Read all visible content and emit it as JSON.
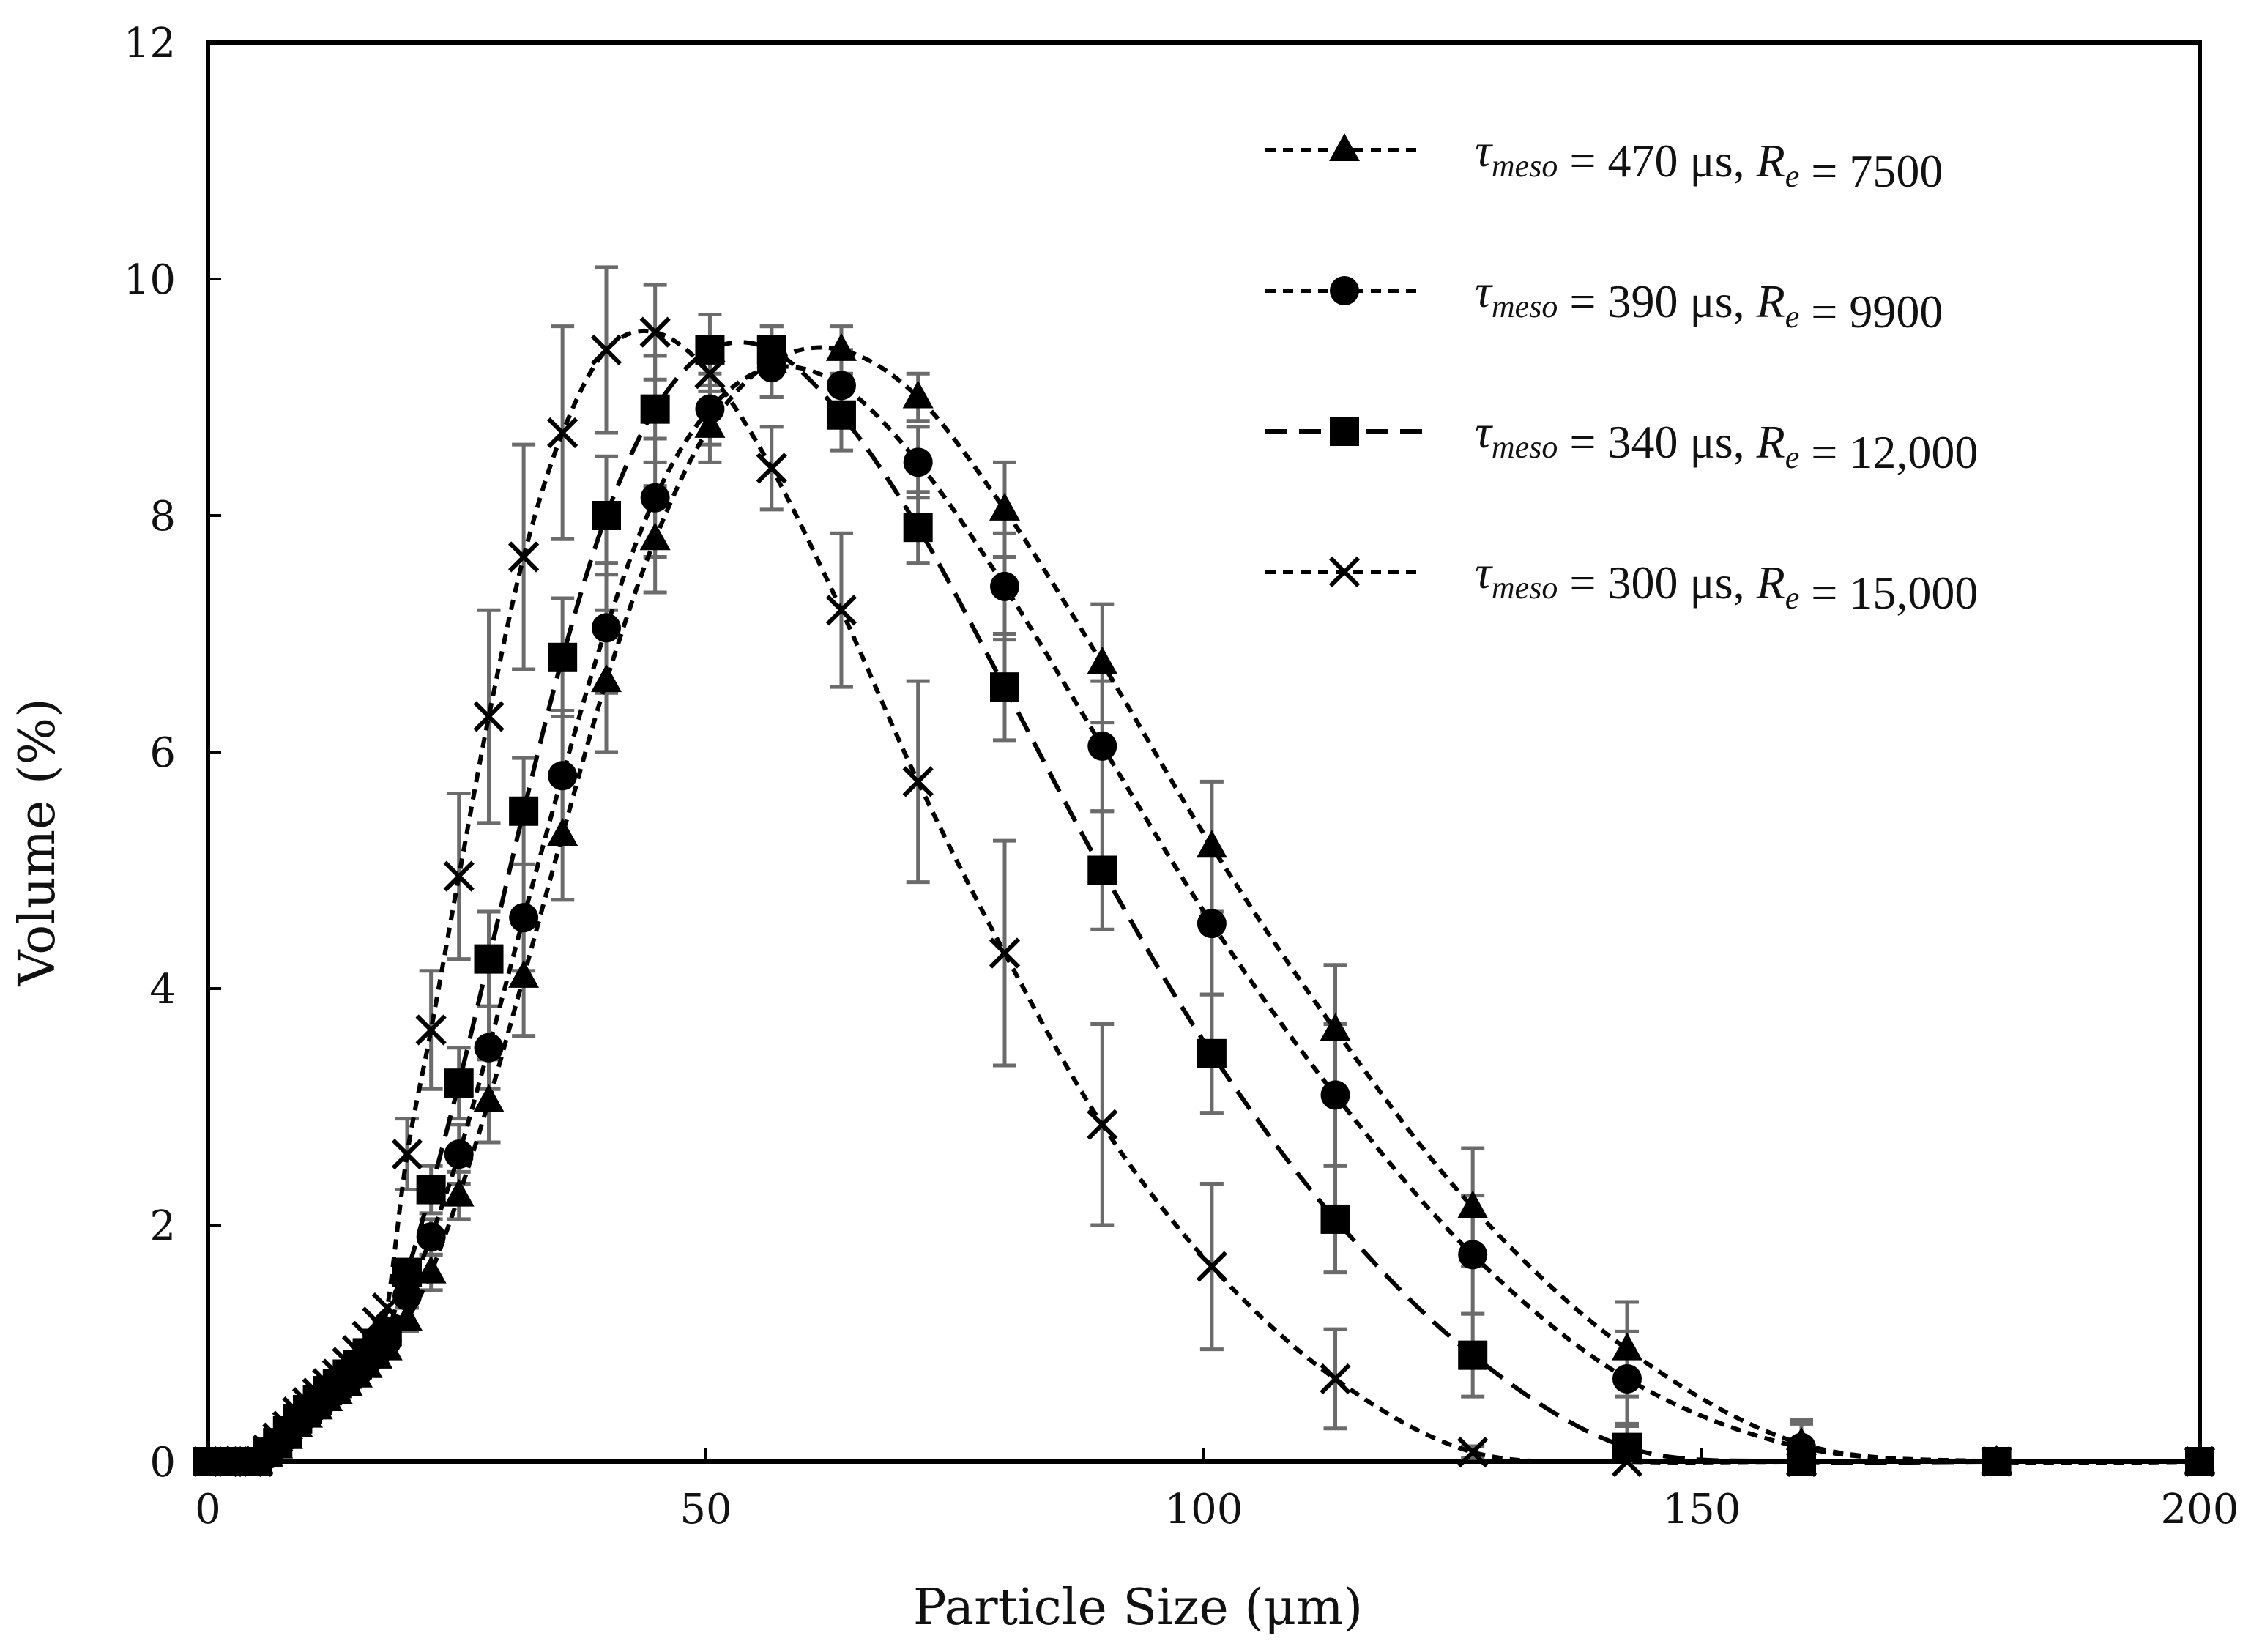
{
  "chart_data": {
    "type": "line",
    "xlabel": "Particle Size (μm)",
    "ylabel": "Volume (%)",
    "xlim": [
      0,
      200
    ],
    "ylim": [
      0,
      12
    ],
    "xticks": [
      0,
      50,
      100,
      150,
      200
    ],
    "yticks": [
      0,
      2,
      4,
      6,
      8,
      10,
      12
    ],
    "grid": false,
    "legend_position": "top-right",
    "series": [
      {
        "name": "τmeso = 470 μs, Re = 7500",
        "tau": "470",
        "re": "7500",
        "marker": "triangle",
        "dash": "short",
        "x": [
          0,
          2,
          4,
          5,
          6,
          7,
          8,
          9,
          10,
          11,
          12,
          13,
          14,
          15,
          16,
          17,
          18,
          20,
          22.4,
          25.2,
          28.2,
          31.7,
          35.6,
          40,
          44.9,
          50.4,
          56.6,
          63.6,
          71.3,
          80,
          89.8,
          100.8,
          113.2,
          127,
          142.5,
          160,
          179.6,
          200
        ],
        "y": [
          0,
          0,
          0,
          0,
          0.05,
          0.12,
          0.2,
          0.3,
          0.38,
          0.45,
          0.52,
          0.58,
          0.65,
          0.72,
          0.8,
          0.88,
          0.95,
          1.2,
          1.6,
          2.25,
          3.05,
          4.1,
          5.3,
          6.6,
          7.8,
          8.75,
          9.3,
          9.4,
          9,
          8.05,
          6.75,
          5.2,
          3.65,
          2.15,
          0.95,
          0.15,
          0,
          0
        ],
        "err": [
          0,
          0,
          0,
          0,
          0,
          0,
          0,
          0,
          0,
          0,
          0,
          0,
          0,
          0,
          0,
          0,
          0,
          0.1,
          0.15,
          0.2,
          0.35,
          0.5,
          0.55,
          0.6,
          0.45,
          0.3,
          0.3,
          0.2,
          0.2,
          0.4,
          0.5,
          0.55,
          0.55,
          0.5,
          0.4,
          0.2,
          0,
          0
        ]
      },
      {
        "name": "τmeso = 390 μs, Re = 9900",
        "tau": "390",
        "re": "9900",
        "marker": "circle",
        "dash": "short",
        "x": [
          0,
          2,
          4,
          5,
          6,
          7,
          8,
          9,
          10,
          11,
          12,
          13,
          14,
          15,
          16,
          17,
          18,
          20,
          22.4,
          25.2,
          28.2,
          31.7,
          35.6,
          40,
          44.9,
          50.4,
          56.6,
          63.6,
          71.3,
          80,
          89.8,
          100.8,
          113.2,
          127,
          142.5,
          160,
          179.6,
          200
        ],
        "y": [
          0,
          0,
          0,
          0,
          0.06,
          0.14,
          0.22,
          0.32,
          0.4,
          0.47,
          0.54,
          0.6,
          0.68,
          0.75,
          0.85,
          0.93,
          1.02,
          1.4,
          1.9,
          2.6,
          3.5,
          4.6,
          5.8,
          7.05,
          8.15,
          8.9,
          9.25,
          9.1,
          8.45,
          7.4,
          6.05,
          4.55,
          3.1,
          1.75,
          0.7,
          0.12,
          0,
          0
        ],
        "err": [
          0,
          0,
          0,
          0,
          0,
          0,
          0,
          0,
          0,
          0,
          0,
          0,
          0,
          0,
          0,
          0,
          0,
          0.1,
          0.15,
          0.25,
          0.35,
          0.45,
          0.55,
          0.55,
          0.5,
          0.3,
          0.25,
          0.3,
          0.3,
          0.45,
          0.55,
          0.6,
          0.6,
          0.5,
          0.4,
          0.2,
          0,
          0
        ]
      },
      {
        "name": "τmeso = 340 μs, Re = 12,000",
        "tau": "340",
        "re": "12,000",
        "marker": "square",
        "dash": "long",
        "x": [
          0,
          2,
          4,
          5,
          6,
          7,
          8,
          9,
          10,
          11,
          12,
          13,
          14,
          15,
          16,
          17,
          18,
          20,
          22.4,
          25.2,
          28.2,
          31.7,
          35.6,
          40,
          44.9,
          50.4,
          56.6,
          63.6,
          71.3,
          80,
          89.8,
          100.8,
          113.2,
          127,
          142.5,
          160,
          179.6,
          200
        ],
        "y": [
          0,
          0,
          0,
          0,
          0.08,
          0.16,
          0.26,
          0.36,
          0.44,
          0.52,
          0.6,
          0.66,
          0.74,
          0.82,
          0.92,
          1.0,
          1.1,
          1.6,
          2.3,
          3.2,
          4.25,
          5.5,
          6.8,
          8.0,
          8.9,
          9.4,
          9.4,
          8.85,
          7.9,
          6.55,
          5.0,
          3.45,
          2.05,
          0.9,
          0.12,
          0,
          0,
          0
        ],
        "err": [
          0,
          0,
          0,
          0,
          0,
          0,
          0,
          0,
          0,
          0,
          0,
          0,
          0,
          0,
          0,
          0,
          0,
          0.1,
          0.2,
          0.3,
          0.4,
          0.45,
          0.5,
          0.5,
          0.45,
          0.3,
          0.2,
          0.3,
          0.3,
          0.45,
          0.5,
          0.5,
          0.45,
          0.35,
          0.2,
          0,
          0,
          0
        ]
      },
      {
        "name": "τmeso = 300 μs, Re = 15,000",
        "tau": "300",
        "re": "15,000",
        "marker": "cross",
        "dash": "short",
        "x": [
          0,
          2,
          4,
          5,
          6,
          7,
          8,
          9,
          10,
          11,
          12,
          13,
          14,
          15,
          16,
          17,
          18,
          20,
          22.4,
          25.2,
          28.2,
          31.7,
          35.6,
          40,
          44.9,
          50.4,
          56.6,
          63.6,
          71.3,
          80,
          89.8,
          100.8,
          113.2,
          127,
          142.5,
          160,
          179.6,
          200
        ],
        "y": [
          0,
          0,
          0,
          0,
          0.1,
          0.2,
          0.3,
          0.42,
          0.5,
          0.58,
          0.66,
          0.74,
          0.84,
          0.94,
          1.06,
          1.18,
          1.3,
          2.6,
          3.65,
          4.95,
          6.3,
          7.65,
          8.7,
          9.4,
          9.55,
          9.2,
          8.4,
          7.2,
          5.75,
          4.3,
          2.85,
          1.65,
          0.7,
          0.08,
          0,
          0,
          0,
          0
        ],
        "err": [
          0,
          0,
          0,
          0,
          0,
          0,
          0,
          0,
          0,
          0,
          0,
          0,
          0,
          0,
          0,
          0,
          0,
          0.3,
          0.5,
          0.7,
          0.9,
          0.95,
          0.9,
          0.7,
          0.4,
          0.3,
          0.35,
          0.65,
          0.85,
          0.95,
          0.85,
          0.7,
          0.42,
          0.05,
          0,
          0,
          0,
          0
        ]
      }
    ]
  }
}
